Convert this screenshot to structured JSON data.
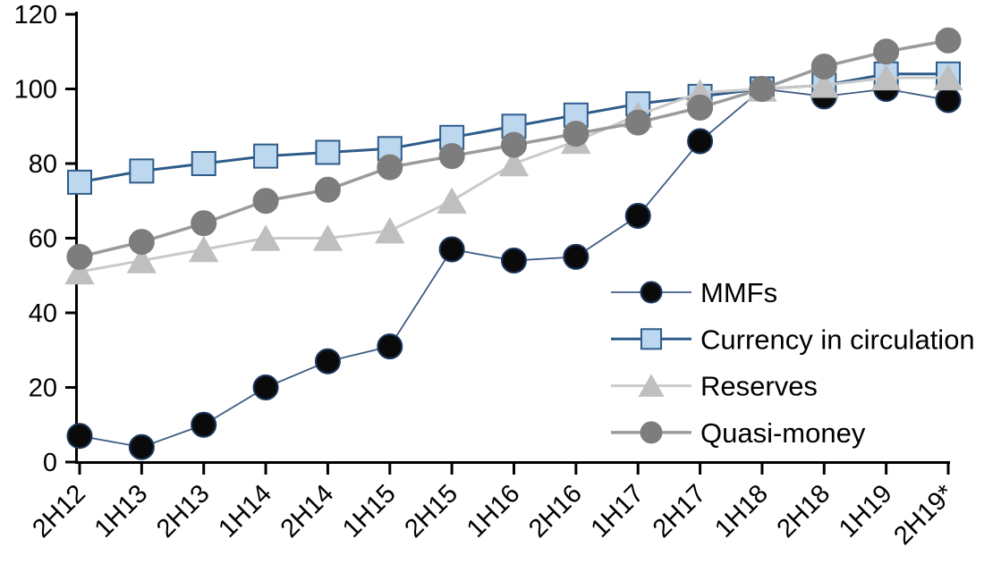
{
  "chart_data": {
    "type": "line",
    "title": "",
    "xlabel": "",
    "ylabel": "",
    "categories": [
      "2H12",
      "1H13",
      "2H13",
      "1H14",
      "2H14",
      "1H15",
      "2H15",
      "1H16",
      "2H16",
      "1H17",
      "2H17",
      "1H18",
      "2H18",
      "1H19",
      "2H19*"
    ],
    "series": [
      {
        "name": "MMFs",
        "marker": "circle",
        "line_color": "#3e5c85",
        "marker_fill": "#0a0a0a",
        "marker_stroke": "#1b365d",
        "line_width": 1.8,
        "values": [
          7,
          4,
          10,
          20,
          27,
          31,
          57,
          54,
          55,
          66,
          86,
          100,
          98,
          100,
          97
        ]
      },
      {
        "name": "Currency in circulation",
        "marker": "square",
        "line_color": "#2e5c8a",
        "marker_fill": "#bdd7ee",
        "marker_stroke": "#2e5c8a",
        "line_width": 3,
        "values": [
          75,
          78,
          80,
          82,
          83,
          84,
          87,
          90,
          93,
          96,
          98,
          100,
          101,
          104,
          104
        ]
      },
      {
        "name": "Reserves",
        "marker": "triangle",
        "line_color": "#c9c9c9",
        "marker_fill": "#bfbfbf",
        "marker_stroke": "#bfbfbf",
        "line_width": 3,
        "values": [
          51,
          54,
          57,
          60,
          60,
          62,
          70,
          80,
          86,
          93,
          99,
          100,
          101,
          103,
          103
        ]
      },
      {
        "name": "Quasi-money",
        "marker": "circle",
        "line_color": "#9b9b9b",
        "marker_fill": "#7d7d7d",
        "marker_stroke": "#7d7d7d",
        "line_width": 3.5,
        "values": [
          55,
          59,
          64,
          70,
          73,
          79,
          82,
          85,
          88,
          91,
          95,
          100,
          106,
          110,
          113
        ]
      }
    ],
    "ylim": [
      0,
      120
    ],
    "yticks": [
      0,
      20,
      40,
      60,
      80,
      100,
      120
    ],
    "grid": false,
    "legend_position": "inside-right",
    "axis_color": "#000000",
    "background": "#ffffff"
  },
  "legend": {
    "items": [
      "MMFs",
      "Currency in circulation",
      "Reserves",
      "Quasi-money"
    ]
  }
}
